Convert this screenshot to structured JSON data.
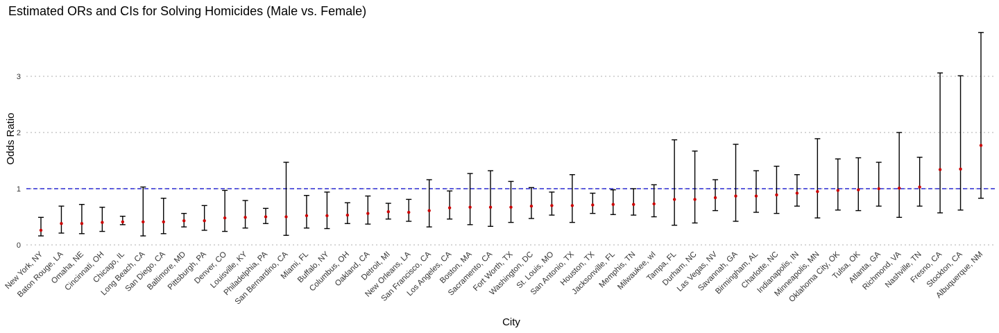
{
  "chart_data": {
    "type": "scatter",
    "title": "Estimated ORs and CIs for Solving Homicides (Male vs. Female)",
    "xlabel": "City",
    "ylabel": "Odds Ratio",
    "ylim": [
      0,
      3.8
    ],
    "yticks": [
      "0",
      "1",
      "2",
      "3"
    ],
    "grid": "horizontal dotted",
    "reference_line": {
      "y": 1,
      "style": "dashed",
      "color": "#0000cc"
    },
    "point_color": "#cc0000",
    "errorbar_color": "#000000",
    "categories": [
      "New York, NY",
      "Baton Rouge, LA",
      "Omaha, NE",
      "Cincinnati, OH",
      "Chicago, IL",
      "Long Beach, CA",
      "San Diego, CA",
      "Baltimore, MD",
      "Pittsburgh, PA",
      "Denver, CO",
      "Louisville, KY",
      "Philadelphia, PA",
      "San Bernardino, CA",
      "Miami, FL",
      "Buffalo, NY",
      "Columbus, OH",
      "Oakland, CA",
      "Detroit, MI",
      "New Orleans, LA",
      "San Francisco, CA",
      "Los Angeles, CA",
      "Boston, MA",
      "Sacramento, CA",
      "Fort Worth, TX",
      "Washington, DC",
      "St. Louis, MO",
      "San Antonio, TX",
      "Houston, TX",
      "Jacksonville, FL",
      "Memphis, TN",
      "Milwaukee, wI",
      "Tampa, FL",
      "Durham, NC",
      "Las Vegas, NV",
      "Savannah, GA",
      "Birmingham, AL",
      "Charlotte, NC",
      "Indianapolis, IN",
      "Minneapolis, MN",
      "Oklahoma City, OK",
      "Tulsa, OK",
      "Atlanta, GA",
      "Richmond, VA",
      "Nashville, TN",
      "Fresno, CA",
      "Stockton, CA",
      "Albuquerque, NM"
    ],
    "estimate": [
      0.26,
      0.38,
      0.38,
      0.4,
      0.41,
      0.41,
      0.41,
      0.43,
      0.43,
      0.48,
      0.49,
      0.5,
      0.5,
      0.52,
      0.52,
      0.53,
      0.56,
      0.59,
      0.58,
      0.61,
      0.66,
      0.67,
      0.67,
      0.67,
      0.69,
      0.7,
      0.7,
      0.71,
      0.72,
      0.72,
      0.73,
      0.81,
      0.81,
      0.84,
      0.87,
      0.87,
      0.89,
      0.92,
      0.95,
      0.97,
      0.98,
      1.0,
      1.01,
      1.03,
      1.34,
      1.35,
      1.77
    ],
    "ci_low": [
      0.16,
      0.21,
      0.2,
      0.24,
      0.36,
      0.16,
      0.2,
      0.32,
      0.26,
      0.24,
      0.3,
      0.38,
      0.17,
      0.3,
      0.29,
      0.38,
      0.37,
      0.46,
      0.42,
      0.32,
      0.46,
      0.36,
      0.33,
      0.4,
      0.47,
      0.53,
      0.4,
      0.56,
      0.54,
      0.53,
      0.5,
      0.35,
      0.39,
      0.61,
      0.42,
      0.58,
      0.56,
      0.69,
      0.48,
      0.62,
      0.61,
      0.69,
      0.49,
      0.69,
      0.57,
      0.62,
      0.83
    ],
    "ci_high": [
      0.49,
      0.69,
      0.72,
      0.67,
      0.51,
      1.03,
      0.83,
      0.56,
      0.7,
      0.97,
      0.79,
      0.65,
      1.47,
      0.88,
      0.94,
      0.75,
      0.87,
      0.74,
      0.81,
      1.16,
      0.96,
      1.27,
      1.32,
      1.13,
      1.02,
      0.94,
      1.25,
      0.92,
      0.98,
      1.0,
      1.07,
      1.87,
      1.67,
      1.16,
      1.79,
      1.32,
      1.4,
      1.25,
      1.89,
      1.53,
      1.55,
      1.47,
      2.0,
      1.56,
      3.06,
      3.01,
      3.78
    ]
  }
}
